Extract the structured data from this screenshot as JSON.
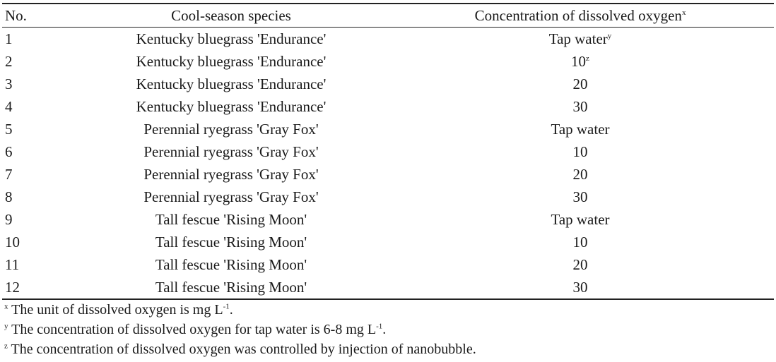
{
  "table": {
    "headers": {
      "no": "No.",
      "species": "Cool-season species",
      "concentration": "Concentration of dissolved oxygen",
      "concentration_mark": "x"
    },
    "rows": [
      {
        "no": "1",
        "species": "Kentucky bluegrass 'Endurance'",
        "concentration": "Tap water",
        "mark": "y"
      },
      {
        "no": "2",
        "species": "Kentucky bluegrass 'Endurance'",
        "concentration": "10",
        "mark": "z"
      },
      {
        "no": "3",
        "species": "Kentucky bluegrass 'Endurance'",
        "concentration": "20",
        "mark": ""
      },
      {
        "no": "4",
        "species": "Kentucky bluegrass 'Endurance'",
        "concentration": "30",
        "mark": ""
      },
      {
        "no": "5",
        "species": "Perennial ryegrass 'Gray Fox'",
        "concentration": "Tap water",
        "mark": ""
      },
      {
        "no": "6",
        "species": "Perennial ryegrass 'Gray Fox'",
        "concentration": "10",
        "mark": ""
      },
      {
        "no": "7",
        "species": "Perennial ryegrass 'Gray Fox'",
        "concentration": "20",
        "mark": ""
      },
      {
        "no": "8",
        "species": "Perennial ryegrass 'Gray Fox'",
        "concentration": "30",
        "mark": ""
      },
      {
        "no": "9",
        "species": "Tall fescue 'Rising Moon'",
        "concentration": "Tap water",
        "mark": ""
      },
      {
        "no": "10",
        "species": "Tall fescue 'Rising Moon'",
        "concentration": "10",
        "mark": ""
      },
      {
        "no": "11",
        "species": "Tall fescue 'Rising Moon'",
        "concentration": "20",
        "mark": ""
      },
      {
        "no": "12",
        "species": "Tall fescue 'Rising Moon'",
        "concentration": "30",
        "mark": ""
      }
    ]
  },
  "footnotes": [
    {
      "mark": "x",
      "text_before": " The unit of dissolved oxygen is mg L",
      "exp": "-1",
      "text_after": "."
    },
    {
      "mark": "y",
      "text_before": " The concentration of dissolved oxygen for tap water is 6-8 mg L",
      "exp": "-1",
      "text_after": "."
    },
    {
      "mark": "z",
      "text_before": " The concentration of dissolved oxygen was controlled by injection of nanobubble.",
      "exp": "",
      "text_after": ""
    }
  ]
}
